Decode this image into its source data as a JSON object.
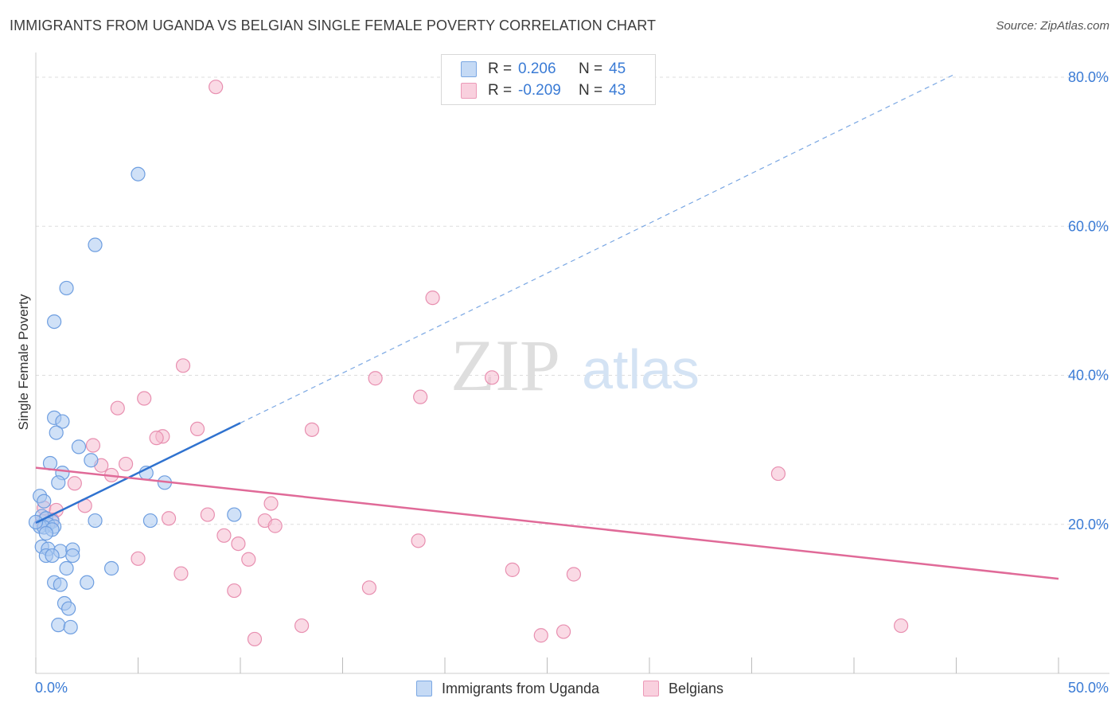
{
  "title": "IMMIGRANTS FROM UGANDA VS BELGIAN SINGLE FEMALE POVERTY CORRELATION CHART",
  "source": "Source: ZipAtlas.com",
  "watermark": {
    "zip": "ZIP",
    "atlas": "atlas"
  },
  "colors": {
    "blue_fill": "#aac8f0",
    "blue_stroke": "#6e9ee0",
    "blue_line": "#2f72cf",
    "pink_fill": "#f6bcd0",
    "pink_stroke": "#e88fb0",
    "pink_line": "#e06a98",
    "axis_text": "#3a7bd5",
    "grid": "#dddddd"
  },
  "legend": {
    "series": [
      {
        "r_label": "R =",
        "r_value": "0.206",
        "n_label": "N =",
        "n_value": "45"
      },
      {
        "r_label": "R =",
        "r_value": "-0.209",
        "n_label": "N =",
        "n_value": "43"
      }
    ],
    "bottom": [
      "Immigrants from Uganda",
      "Belgians"
    ]
  },
  "chart_data": {
    "type": "scatter",
    "title": "IMMIGRANTS FROM UGANDA VS BELGIAN SINGLE FEMALE POVERTY CORRELATION CHART",
    "xlabel": "",
    "ylabel": "Single Female Poverty",
    "xlim": [
      0,
      50
    ],
    "ylim": [
      0,
      80
    ],
    "x_tick_labels": [
      "0.0%",
      "50.0%"
    ],
    "y_ticks": [
      20,
      40,
      60,
      80
    ],
    "y_tick_labels": [
      "20.0%",
      "40.0%",
      "60.0%",
      "80.0%"
    ],
    "grid": true,
    "legend_position": "top-center",
    "series": [
      {
        "name": "Immigrants from Uganda",
        "r": 0.206,
        "n": 45,
        "trend": {
          "x_start": 0,
          "y_start": 20.2,
          "x_solid_end": 10,
          "y_solid_end": 33.6,
          "x_dash_end": 45,
          "y_dash_end": 80.5
        },
        "points": [
          [
            5.0,
            67.0
          ],
          [
            2.9,
            57.5
          ],
          [
            1.5,
            51.7
          ],
          [
            0.9,
            47.2
          ],
          [
            0.9,
            34.3
          ],
          [
            1.3,
            33.8
          ],
          [
            1.0,
            32.3
          ],
          [
            2.1,
            30.4
          ],
          [
            0.7,
            28.2
          ],
          [
            2.7,
            28.6
          ],
          [
            1.3,
            26.9
          ],
          [
            1.1,
            25.6
          ],
          [
            5.4,
            26.9
          ],
          [
            6.3,
            25.6
          ],
          [
            0.2,
            23.8
          ],
          [
            0.4,
            23.1
          ],
          [
            0.3,
            21.1
          ],
          [
            0.5,
            20.8
          ],
          [
            0.8,
            20.4
          ],
          [
            0.6,
            20.0
          ],
          [
            0.2,
            19.7
          ],
          [
            0.4,
            19.6
          ],
          [
            0.9,
            19.7
          ],
          [
            0.8,
            19.3
          ],
          [
            0.5,
            18.8
          ],
          [
            2.9,
            20.5
          ],
          [
            5.6,
            20.5
          ],
          [
            9.7,
            21.3
          ],
          [
            0.3,
            17.0
          ],
          [
            0.6,
            16.7
          ],
          [
            1.2,
            16.4
          ],
          [
            1.8,
            16.6
          ],
          [
            0.5,
            15.8
          ],
          [
            0.8,
            15.8
          ],
          [
            1.8,
            15.8
          ],
          [
            1.5,
            14.1
          ],
          [
            3.7,
            14.1
          ],
          [
            0.9,
            12.2
          ],
          [
            1.2,
            11.9
          ],
          [
            2.5,
            12.2
          ],
          [
            1.4,
            9.4
          ],
          [
            1.6,
            8.7
          ],
          [
            1.1,
            6.5
          ],
          [
            1.7,
            6.2
          ],
          [
            0.0,
            20.3
          ]
        ]
      },
      {
        "name": "Belgians",
        "r": -0.209,
        "n": 43,
        "trend": {
          "x_start": 0,
          "y_start": 27.6,
          "x_end": 50,
          "y_end": 12.7
        },
        "points": [
          [
            8.8,
            78.7
          ],
          [
            19.4,
            50.4
          ],
          [
            7.2,
            41.3
          ],
          [
            16.6,
            39.6
          ],
          [
            22.3,
            39.7
          ],
          [
            5.3,
            36.9
          ],
          [
            18.8,
            37.1
          ],
          [
            4.0,
            35.6
          ],
          [
            7.9,
            32.8
          ],
          [
            13.5,
            32.7
          ],
          [
            6.2,
            31.8
          ],
          [
            5.9,
            31.6
          ],
          [
            2.8,
            30.6
          ],
          [
            3.2,
            27.9
          ],
          [
            4.4,
            28.1
          ],
          [
            3.7,
            26.6
          ],
          [
            36.3,
            26.8
          ],
          [
            1.9,
            25.5
          ],
          [
            0.4,
            22.2
          ],
          [
            1.0,
            21.9
          ],
          [
            2.4,
            22.5
          ],
          [
            11.5,
            22.8
          ],
          [
            8.4,
            21.3
          ],
          [
            6.5,
            20.8
          ],
          [
            11.2,
            20.5
          ],
          [
            11.7,
            19.8
          ],
          [
            9.2,
            18.5
          ],
          [
            18.7,
            17.8
          ],
          [
            9.9,
            17.4
          ],
          [
            10.4,
            15.3
          ],
          [
            5.0,
            15.4
          ],
          [
            7.1,
            13.4
          ],
          [
            23.3,
            13.9
          ],
          [
            26.3,
            13.3
          ],
          [
            9.7,
            11.1
          ],
          [
            16.3,
            11.5
          ],
          [
            13.0,
            6.4
          ],
          [
            10.7,
            4.6
          ],
          [
            24.7,
            5.1
          ],
          [
            25.8,
            5.6
          ],
          [
            42.3,
            6.4
          ],
          [
            0.8,
            20.6
          ],
          [
            0.3,
            20.4
          ]
        ]
      }
    ]
  }
}
